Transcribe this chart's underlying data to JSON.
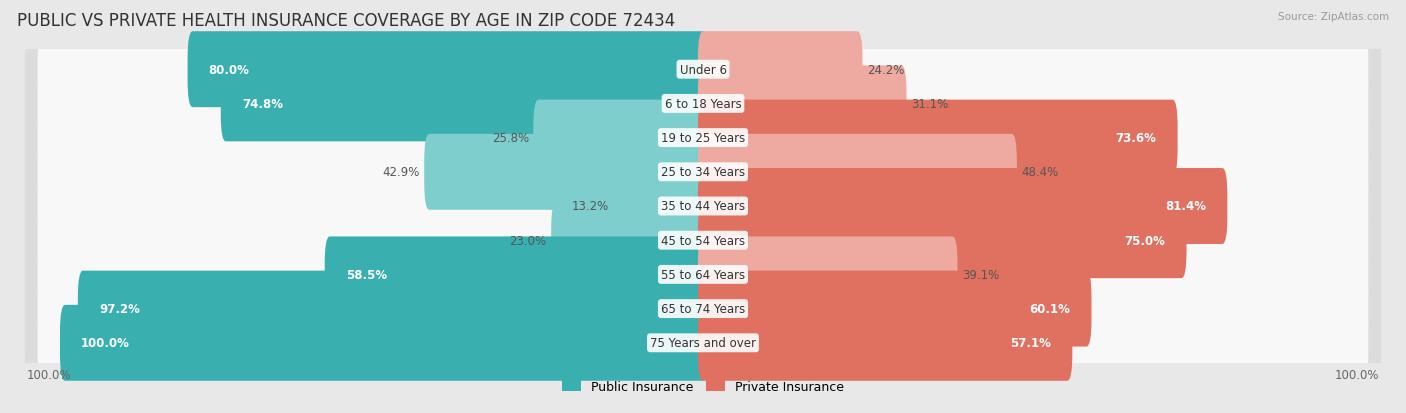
{
  "title": "PUBLIC VS PRIVATE HEALTH INSURANCE COVERAGE BY AGE IN ZIP CODE 72434",
  "source": "Source: ZipAtlas.com",
  "categories": [
    "Under 6",
    "6 to 18 Years",
    "19 to 25 Years",
    "25 to 34 Years",
    "35 to 44 Years",
    "45 to 54 Years",
    "55 to 64 Years",
    "65 to 74 Years",
    "75 Years and over"
  ],
  "public_values": [
    80.0,
    74.8,
    25.8,
    42.9,
    13.2,
    23.0,
    58.5,
    97.2,
    100.0
  ],
  "private_values": [
    24.2,
    31.1,
    73.6,
    48.4,
    81.4,
    75.0,
    39.1,
    60.1,
    57.1
  ],
  "public_color_high": "#3aafaf",
  "public_color_low": "#7ecece",
  "private_color_high": "#e07060",
  "private_color_low": "#eeaaa0",
  "public_label": "Public Insurance",
  "private_label": "Private Insurance",
  "max_value": 100.0,
  "background_color": "#e8e8e8",
  "row_color_odd": "#f2f2f2",
  "row_color_even": "#e0e0e0",
  "title_fontsize": 12,
  "value_fontsize": 8.5,
  "cat_fontsize": 8.5,
  "threshold": 50.0
}
